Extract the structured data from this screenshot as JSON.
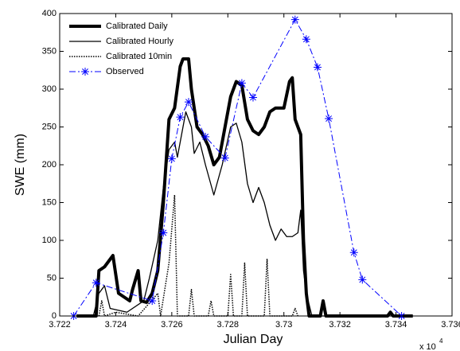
{
  "chart_data": {
    "type": "line",
    "xlabel": "Julian Day",
    "ylabel": "SWE (mm)",
    "axis_multiplier": {
      "base": "x 10",
      "exponent": "4"
    },
    "xlim": [
      37220,
      37360
    ],
    "ylim": [
      0,
      400
    ],
    "xticks": [
      {
        "value": 37220,
        "label": "3.722"
      },
      {
        "value": 37240,
        "label": "3.724"
      },
      {
        "value": 37260,
        "label": "3.726"
      },
      {
        "value": 37280,
        "label": "3.728"
      },
      {
        "value": 37300,
        "label": "3.73"
      },
      {
        "value": 37320,
        "label": "3.732"
      },
      {
        "value": 37340,
        "label": "3.734"
      },
      {
        "value": 37360,
        "label": "3.736"
      }
    ],
    "yticks": [
      0,
      50,
      100,
      150,
      200,
      250,
      300,
      350,
      400
    ],
    "legend": "upper left",
    "series": [
      {
        "name": "Calibrated Daily",
        "color": "#000000",
        "line_width": 4,
        "dash": "none",
        "x": [
          37226,
          37233,
          37234,
          37236,
          37239,
          37241,
          37243,
          37245,
          37246,
          37248,
          37249,
          37251,
          37253,
          37255,
          37257,
          37259,
          37261,
          37263,
          37264,
          37266,
          37267,
          37269,
          37271,
          37273,
          37275,
          37277,
          37279,
          37281,
          37283,
          37285,
          37287,
          37289,
          37291,
          37293,
          37295,
          37297,
          37300,
          37302,
          37303,
          37304,
          37306,
          37307,
          37308,
          37309,
          37313,
          37314,
          37315,
          37337,
          37338,
          37339,
          37346
        ],
        "values": [
          0,
          0,
          60,
          65,
          80,
          30,
          25,
          20,
          35,
          60,
          20,
          18,
          30,
          60,
          150,
          260,
          275,
          330,
          340,
          340,
          300,
          250,
          240,
          225,
          200,
          210,
          250,
          290,
          310,
          305,
          260,
          245,
          240,
          250,
          270,
          275,
          275,
          310,
          315,
          260,
          240,
          100,
          30,
          0,
          0,
          20,
          0,
          0,
          5,
          0,
          0
        ]
      },
      {
        "name": "Calibrated Hourly",
        "color": "#000000",
        "line_width": 1.3,
        "dash": "none",
        "x": [
          37232,
          37234,
          37236,
          37238,
          37244,
          37250,
          37252,
          37255,
          37257,
          37259,
          37261,
          37262,
          37264,
          37265,
          37267,
          37268,
          37270,
          37272,
          37275,
          37278,
          37281,
          37283,
          37285,
          37287,
          37289,
          37291,
          37293,
          37295,
          37297,
          37299,
          37301,
          37303,
          37305,
          37306,
          37307,
          37308,
          37310,
          37346
        ],
        "values": [
          0,
          30,
          40,
          10,
          5,
          20,
          50,
          100,
          170,
          220,
          230,
          210,
          250,
          270,
          250,
          215,
          230,
          200,
          160,
          200,
          250,
          255,
          230,
          175,
          150,
          170,
          150,
          120,
          100,
          115,
          105,
          105,
          110,
          140,
          60,
          30,
          0,
          0
        ]
      },
      {
        "name": "Calibrated 10min",
        "color": "#000000",
        "line_width": 1.5,
        "dash": "1.5,1.5",
        "x": [
          37234,
          37235,
          37236,
          37240,
          37248,
          37255,
          37256,
          37259,
          37261,
          37262,
          37266,
          37267,
          37268,
          37273,
          37274,
          37275,
          37280,
          37281,
          37282,
          37285,
          37286,
          37287,
          37293,
          37294,
          37295,
          37303,
          37304,
          37305
        ],
        "values": [
          0,
          20,
          0,
          5,
          0,
          30,
          0,
          70,
          160,
          0,
          0,
          35,
          0,
          0,
          20,
          0,
          0,
          55,
          0,
          0,
          70,
          0,
          0,
          75,
          0,
          0,
          10,
          0
        ]
      },
      {
        "name": "Observed",
        "color": "#0000ff",
        "line_width": 1,
        "dash": "8,3,2,3",
        "marker": "asterisk",
        "x": [
          37225,
          37233,
          37253,
          37257,
          37260,
          37263,
          37266,
          37272,
          37279,
          37285,
          37289,
          37304,
          37308,
          37312,
          37316,
          37325,
          37328,
          37342
        ],
        "values": [
          0,
          44,
          20,
          110,
          208,
          263,
          283,
          237,
          209,
          308,
          289,
          392,
          366,
          329,
          261,
          84,
          48,
          0
        ]
      }
    ]
  }
}
